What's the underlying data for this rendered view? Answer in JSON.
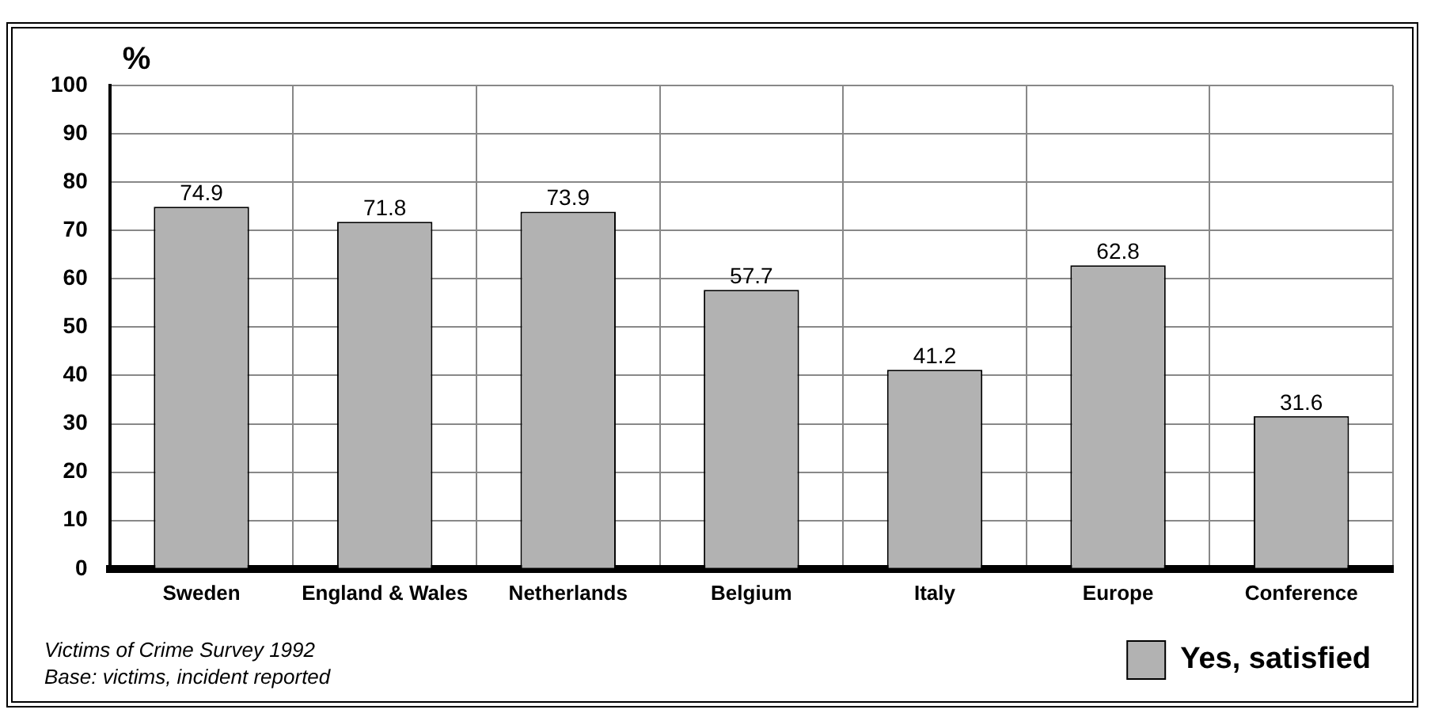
{
  "chart_data": {
    "type": "bar",
    "ylabel": "%",
    "categories": [
      "Sweden",
      "England & Wales",
      "Netherlands",
      "Belgium",
      "Italy",
      "Europe",
      "Conference"
    ],
    "series": [
      {
        "name": "Yes, satisfied",
        "color": "#b2b2b2",
        "values": [
          74.9,
          71.8,
          73.9,
          57.7,
          41.2,
          62.8,
          31.6
        ]
      }
    ],
    "ylim": [
      0,
      100
    ],
    "yticks": [
      0,
      10,
      20,
      30,
      40,
      50,
      60,
      70,
      80,
      90,
      100
    ],
    "grid": true,
    "data_labels": true,
    "legend": "bottom right",
    "annotations": [
      "Victims of Crime Survey 1992",
      "Base: victims, incident reported"
    ]
  }
}
